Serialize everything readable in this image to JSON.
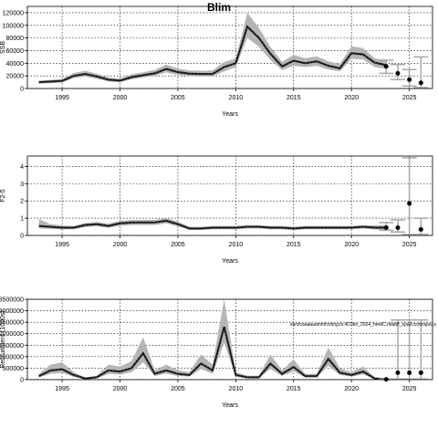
{
  "chart_data": [
    {
      "type": "line",
      "title": "Blim",
      "xlabel": "Years",
      "ylabel": "SSB",
      "xlim": [
        1992,
        2027
      ],
      "ylim": [
        0,
        130000
      ],
      "xticks": [
        1995,
        2000,
        2005,
        2010,
        2015,
        2020,
        2025
      ],
      "yticks": [
        0,
        20000,
        40000,
        60000,
        80000,
        100000,
        120000
      ],
      "ytick_labels": [
        "0",
        "20000",
        "40000",
        "60000",
        "80000",
        "100000",
        "120000"
      ],
      "grid": true,
      "series": [
        {
          "x": [
            1993,
            1994,
            1995,
            1996,
            1997,
            1998,
            1999,
            2000,
            2001,
            2002,
            2003,
            2004,
            2005,
            2006,
            2007,
            2008,
            2009,
            2010,
            2011,
            2012,
            2013,
            2014,
            2015,
            2016,
            2017,
            2018,
            2019,
            2020,
            2021,
            2022,
            2023
          ],
          "values": [
            10000,
            11000,
            12000,
            20000,
            23000,
            19000,
            14000,
            12500,
            18000,
            21000,
            24000,
            31000,
            26000,
            23500,
            23000,
            23000,
            34000,
            40000,
            98000,
            80000,
            55000,
            35000,
            44000,
            40000,
            43000,
            36000,
            32000,
            56000,
            54000,
            41000,
            37000
          ],
          "lower": [
            7500,
            8500,
            9500,
            16500,
            19000,
            15500,
            11000,
            10000,
            14500,
            17500,
            20000,
            25500,
            21500,
            19500,
            19000,
            19000,
            27000,
            34000,
            80000,
            66000,
            45000,
            29000,
            36000,
            34000,
            36000,
            30000,
            27000,
            47000,
            46000,
            34000,
            31000
          ],
          "upper": [
            12500,
            13500,
            15000,
            24500,
            28000,
            23500,
            17500,
            15500,
            22500,
            25500,
            29500,
            38000,
            31500,
            28500,
            28000,
            28500,
            42000,
            47500,
            120000,
            96000,
            66000,
            42000,
            53000,
            48000,
            51000,
            43000,
            39000,
            67000,
            64000,
            48000,
            44000
          ]
        }
      ],
      "projection": {
        "x": [
          2023,
          2024,
          2025,
          2026
        ],
        "values": [
          35000,
          24000,
          14000,
          9000
        ],
        "lower": [
          24000,
          14000,
          4000,
          1500
        ],
        "upper": [
          45000,
          38000,
          30000,
          50000
        ]
      }
    },
    {
      "type": "line",
      "title": "",
      "xlabel": "Years",
      "ylabel": "F2-5",
      "xlim": [
        1992,
        2027
      ],
      "ylim": [
        0,
        4.6
      ],
      "xticks": [
        1995,
        2000,
        2005,
        2010,
        2015,
        2020,
        2025
      ],
      "yticks": [
        0,
        1,
        2,
        3,
        4
      ],
      "ytick_labels": [
        "0",
        "1",
        "2",
        "3",
        "4"
      ],
      "grid": true,
      "series": [
        {
          "x": [
            1993,
            1994,
            1995,
            1996,
            1997,
            1998,
            1999,
            2000,
            2001,
            2002,
            2003,
            2004,
            2005,
            2006,
            2007,
            2008,
            2009,
            2010,
            2011,
            2012,
            2013,
            2014,
            2015,
            2016,
            2017,
            2018,
            2019,
            2020,
            2021,
            2022,
            2023
          ],
          "values": [
            0.55,
            0.5,
            0.45,
            0.45,
            0.6,
            0.65,
            0.55,
            0.7,
            0.75,
            0.75,
            0.75,
            0.85,
            0.65,
            0.4,
            0.4,
            0.45,
            0.45,
            0.45,
            0.5,
            0.5,
            0.45,
            0.45,
            0.4,
            0.45,
            0.45,
            0.45,
            0.45,
            0.45,
            0.5,
            0.45,
            0.45
          ],
          "lower": [
            0.4,
            0.38,
            0.35,
            0.36,
            0.48,
            0.52,
            0.44,
            0.56,
            0.6,
            0.6,
            0.6,
            0.7,
            0.52,
            0.32,
            0.32,
            0.36,
            0.36,
            0.36,
            0.4,
            0.4,
            0.36,
            0.36,
            0.32,
            0.36,
            0.36,
            0.36,
            0.36,
            0.36,
            0.4,
            0.35,
            0.33
          ],
          "upper": [
            0.95,
            0.65,
            0.58,
            0.55,
            0.72,
            0.78,
            0.68,
            0.84,
            0.9,
            0.9,
            0.9,
            1.0,
            0.8,
            0.5,
            0.5,
            0.55,
            0.55,
            0.55,
            0.6,
            0.6,
            0.55,
            0.55,
            0.5,
            0.55,
            0.55,
            0.55,
            0.55,
            0.55,
            0.6,
            0.58,
            0.6
          ]
        }
      ],
      "projection": {
        "x": [
          2023,
          2024,
          2025,
          2026
        ],
        "values": [
          0.45,
          0.45,
          1.85,
          0.35
        ],
        "lower": [
          0.3,
          0.2,
          0.05,
          0.05
        ],
        "upper": [
          0.75,
          0.9,
          4.5,
          1.0
        ]
      }
    },
    {
      "type": "line",
      "title": "",
      "xlabel": "Years",
      "ylabel": "Recruitment (1000s)",
      "xlim": [
        1992,
        2027
      ],
      "ylim": [
        0,
        3500000
      ],
      "xticks": [
        1995,
        2000,
        2005,
        2010,
        2015,
        2020,
        2025
      ],
      "yticks": [
        0,
        500000,
        1000000,
        1500000,
        2000000,
        2500000,
        3000000,
        3500000
      ],
      "ytick_labels": [
        "0",
        "500000",
        "1000000",
        "1500000",
        "2000000",
        "2500000",
        "3000000",
        "3500000"
      ],
      "grid": true,
      "annotation": "stecfcaaaaaammfcming.tir.4D.fen_2024_hewlC.ntiabff_spa2ccottnspa1s",
      "series": [
        {
          "x": [
            1993,
            1994,
            1995,
            1996,
            1997,
            1998,
            1999,
            2000,
            2001,
            2002,
            2003,
            2004,
            2005,
            2006,
            2007,
            2008,
            2009,
            2010,
            2011,
            2012,
            2013,
            2014,
            2015,
            2016,
            2017,
            2018,
            2019,
            2020,
            2021,
            2022,
            2023
          ],
          "values": [
            150000,
            400000,
            450000,
            200000,
            50000,
            100000,
            400000,
            350000,
            500000,
            1150000,
            250000,
            400000,
            250000,
            200000,
            700000,
            400000,
            2300000,
            200000,
            100000,
            100000,
            700000,
            250000,
            550000,
            150000,
            150000,
            900000,
            300000,
            200000,
            350000,
            50000,
            10000
          ],
          "lower": [
            100000,
            250000,
            300000,
            120000,
            30000,
            60000,
            250000,
            220000,
            320000,
            750000,
            160000,
            260000,
            160000,
            130000,
            460000,
            260000,
            1600000,
            130000,
            60000,
            60000,
            460000,
            160000,
            360000,
            100000,
            100000,
            600000,
            200000,
            130000,
            230000,
            30000,
            5000
          ],
          "upper": [
            250000,
            650000,
            750000,
            330000,
            90000,
            170000,
            650000,
            570000,
            800000,
            1850000,
            410000,
            650000,
            410000,
            330000,
            1100000,
            650000,
            3500000,
            330000,
            170000,
            170000,
            1100000,
            410000,
            880000,
            250000,
            250000,
            1400000,
            490000,
            330000,
            570000,
            90000,
            20000
          ]
        }
      ],
      "projection": {
        "x": [
          2023,
          2024,
          2025,
          2026
        ],
        "values": [
          10000,
          300000,
          300000,
          300000
        ],
        "lower": [
          5000,
          20000,
          20000,
          20000
        ],
        "upper": [
          20000,
          2600000,
          2600000,
          2600000
        ]
      }
    }
  ]
}
